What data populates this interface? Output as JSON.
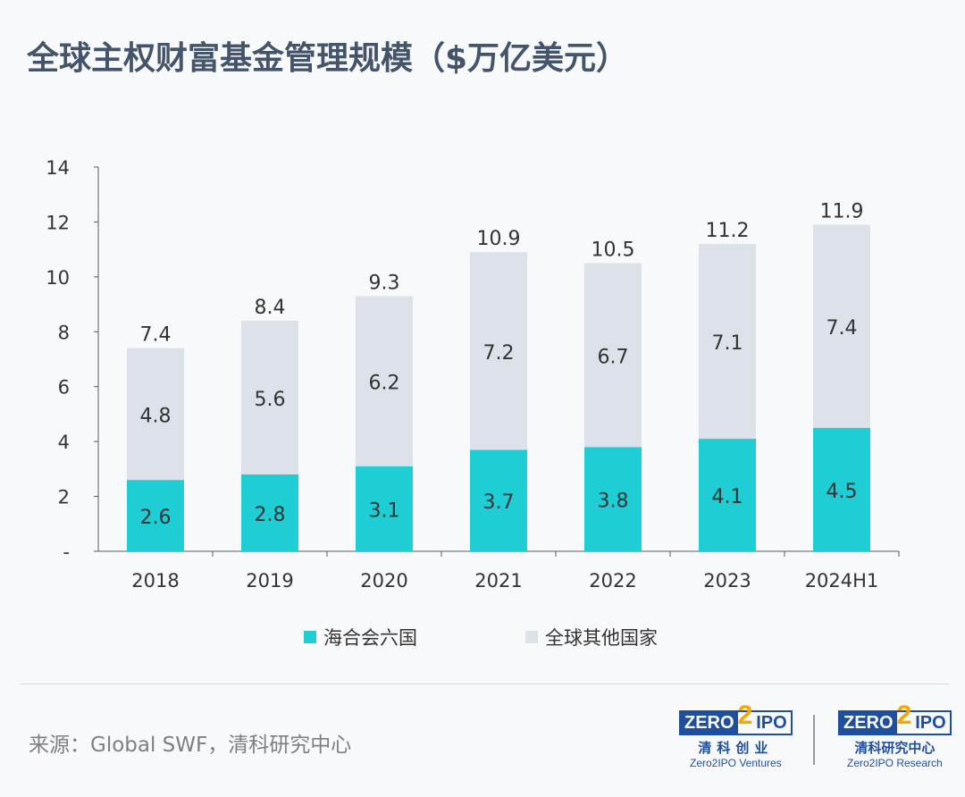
{
  "title": "全球主权财富基金管理规模（$万亿美元）",
  "source": "来源：Global SWF，清科研究中心",
  "logos": [
    {
      "box_left": "ZERO",
      "box_mid": "2",
      "box_right": "IPO",
      "cn": "清科创业",
      "en": "Zero2IPO Ventures"
    },
    {
      "box_left": "ZERO",
      "box_mid": "2",
      "box_right": "IPO",
      "cn": "清科研究中心",
      "en": "Zero2IPO Research"
    }
  ],
  "colors": {
    "gcc": "#1fcdd4",
    "other": "#dde1e9",
    "axis": "#595959"
  },
  "chart_data": {
    "type": "bar",
    "stacked": true,
    "title": "全球主权财富基金管理规模（$万亿美元）",
    "categories": [
      "2018",
      "2019",
      "2020",
      "2021",
      "2022",
      "2023",
      "2024H1"
    ],
    "series": [
      {
        "name": "海合会六国",
        "values": [
          2.6,
          2.8,
          3.1,
          3.7,
          3.8,
          4.1,
          4.5
        ]
      },
      {
        "name": "全球其他国家",
        "values": [
          4.8,
          5.6,
          6.2,
          7.2,
          6.7,
          7.1,
          7.4
        ]
      }
    ],
    "totals": [
      7.4,
      8.4,
      9.3,
      10.9,
      10.5,
      11.2,
      11.9
    ],
    "yticks": [
      "-",
      "2",
      "4",
      "6",
      "8",
      "10",
      "12",
      "14"
    ],
    "ylim": [
      0,
      14
    ],
    "grid": false,
    "legend": "bottom"
  }
}
